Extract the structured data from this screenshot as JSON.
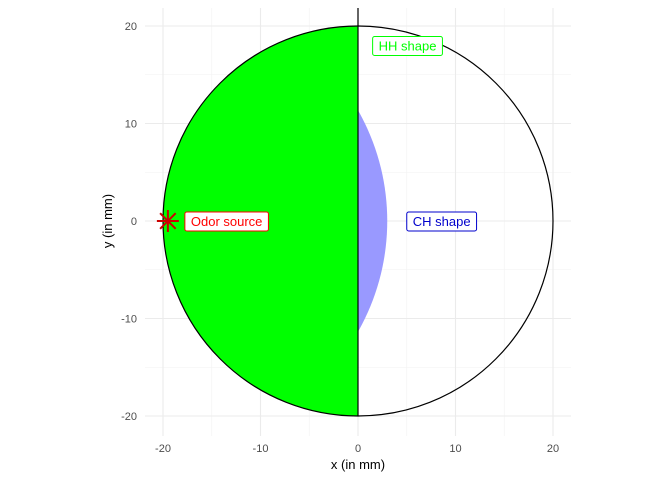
{
  "chart_data": {
    "type": "scatter",
    "xlabel": "x (in mm)",
    "ylabel": "y (in mm)",
    "xlim": [
      -22,
      22
    ],
    "ylim": [
      -22,
      22
    ],
    "grid": true,
    "x_ticks": [
      -20,
      -10,
      0,
      10,
      20
    ],
    "y_ticks": [
      -20,
      -10,
      0,
      10,
      20
    ],
    "x_tick_labels": [
      "-20",
      "-10",
      "0",
      "10",
      "20"
    ],
    "y_tick_labels": [
      "-20",
      "-10",
      "0",
      "10",
      "20"
    ],
    "arena": {
      "center": [
        0,
        0
      ],
      "radius": 20
    },
    "odor_source": {
      "x": -19.5,
      "y": 0,
      "label": "Odor source",
      "color": "#ff0000"
    },
    "hh_shape": {
      "label": "HH shape",
      "color": "#00ff00",
      "arc_center": [
        20,
        0
      ],
      "arc_radius": 40,
      "region": "left half of arena"
    },
    "ch_shape": {
      "label": "CH shape",
      "color": "#9999ff",
      "arc_center": [
        -20,
        0
      ],
      "arc_radius": 23,
      "region": "lens between arena and circle centered at odor source"
    },
    "overlap_color": "#009966",
    "label_positions": {
      "hh": [
        1.5,
        18
      ],
      "ch": [
        5,
        0
      ]
    }
  }
}
